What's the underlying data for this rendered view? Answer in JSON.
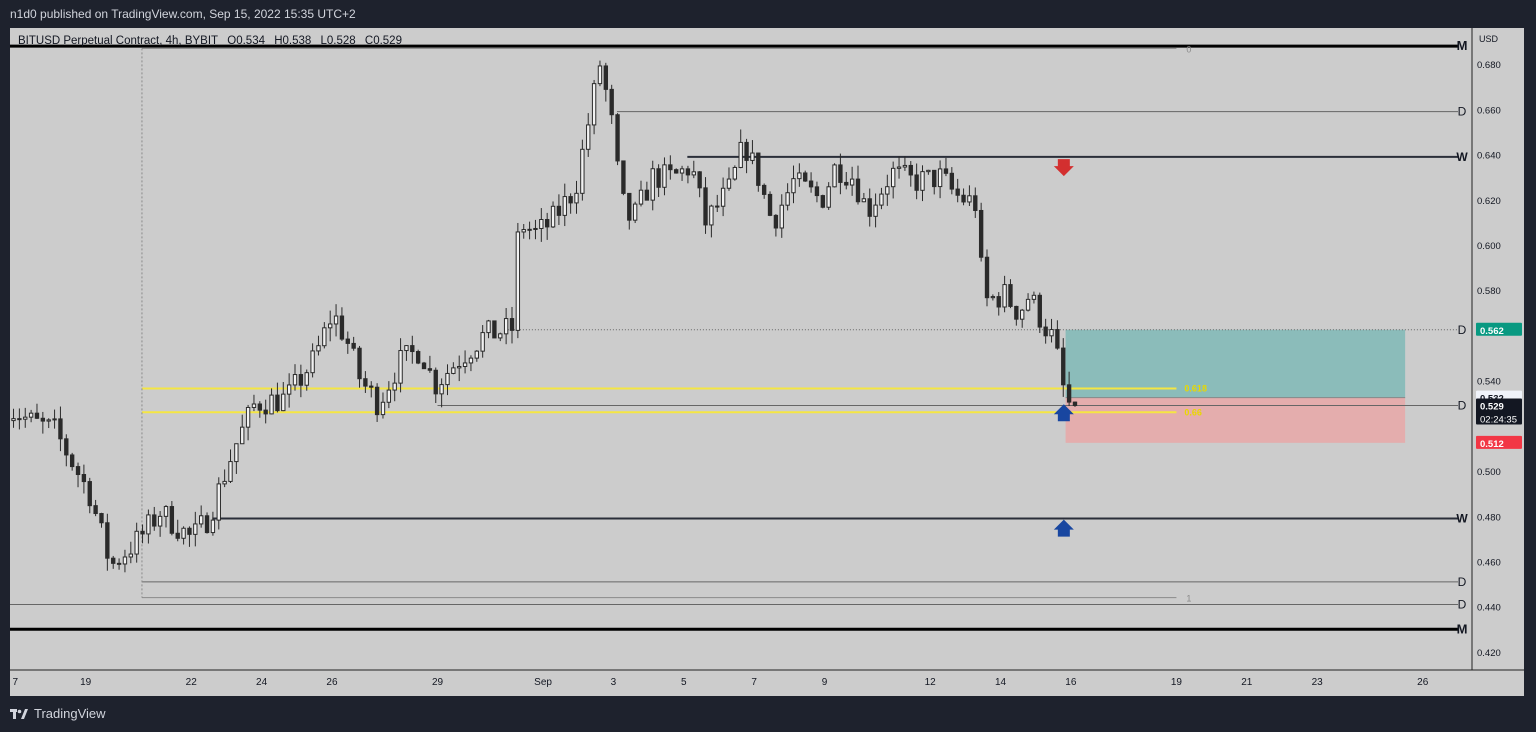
{
  "header": {
    "publisher_text": "n1d0 published on TradingView.com, Sep 15, 2022 15:35 UTC+2"
  },
  "legend": {
    "symbol": "BITUSD Perpetual Contract, 4h, BYBIT",
    "open": "O0.534",
    "high": "H0.538",
    "low": "L0.528",
    "close": "C0.529"
  },
  "price_axis": {
    "currency": "USD",
    "ticks": [
      "0.680",
      "0.660",
      "0.640",
      "0.620",
      "0.600",
      "0.580",
      "0.540",
      "0.500",
      "0.480",
      "0.460",
      "0.440",
      "0.420"
    ]
  },
  "time_axis": {
    "labels": [
      {
        "text": "7",
        "d": 0
      },
      {
        "text": "19",
        "d": 2
      },
      {
        "text": "22",
        "d": 5
      },
      {
        "text": "24",
        "d": 7
      },
      {
        "text": "26",
        "d": 9
      },
      {
        "text": "29",
        "d": 12
      },
      {
        "text": "Sep",
        "d": 15
      },
      {
        "text": "3",
        "d": 17
      },
      {
        "text": "5",
        "d": 19
      },
      {
        "text": "7",
        "d": 21
      },
      {
        "text": "9",
        "d": 23
      },
      {
        "text": "12",
        "d": 26
      },
      {
        "text": "14",
        "d": 28
      },
      {
        "text": "16",
        "d": 30
      },
      {
        "text": "19",
        "d": 33
      },
      {
        "text": "21",
        "d": 35
      },
      {
        "text": "23",
        "d": 37
      },
      {
        "text": "26",
        "d": 40
      }
    ]
  },
  "badges": {
    "target": {
      "text": "0.562",
      "color": "#089981"
    },
    "prev": {
      "text": "0.532",
      "color": "#f0f3fa"
    },
    "current": {
      "text": "0.529",
      "countdown": "02:24:35",
      "color": "#131722"
    },
    "stop": {
      "text": "0.512",
      "color": "#f23645"
    }
  },
  "levels": [
    {
      "label": "M",
      "price": 0.688,
      "kind": "monthly"
    },
    {
      "label": "D",
      "price": 0.659,
      "kind": "daily"
    },
    {
      "label": "W",
      "price": 0.639,
      "kind": "weekly"
    },
    {
      "label": "D",
      "price": 0.5625,
      "kind": "daily"
    },
    {
      "label": "D",
      "price": 0.529,
      "kind": "daily"
    },
    {
      "label": "W",
      "price": 0.479,
      "kind": "weekly"
    },
    {
      "label": "D",
      "price": 0.451,
      "kind": "daily"
    },
    {
      "label": "D",
      "price": 0.441,
      "kind": "daily"
    },
    {
      "label": "M",
      "price": 0.43,
      "kind": "monthly"
    }
  ],
  "fib": {
    "level0_label": "0",
    "level1_label": "1",
    "level618_label": "0.618",
    "level66_label": "0.66",
    "high": 0.687,
    "low": 0.444,
    "p618": 0.5365,
    "p66": 0.526,
    "color": "#f5e642"
  },
  "position": {
    "entry": 0.5325,
    "target": 0.5625,
    "stop": 0.5125,
    "profit_color": "#7fb8b6",
    "loss_color": "#e7a7a7"
  },
  "markers": [
    {
      "type": "down",
      "price": 0.634,
      "d": 29.8,
      "color": "#d32f2f"
    },
    {
      "type": "up",
      "price": 0.526,
      "d": 29.8,
      "color": "#1846a0"
    },
    {
      "type": "up",
      "price": 0.475,
      "d": 29.8,
      "color": "#1846a0"
    }
  ],
  "chart_data": {
    "type": "candlestick",
    "timeframe": "4h",
    "anchors": [
      {
        "d": -0.3,
        "p": 0.53
      },
      {
        "d": 0.5,
        "p": 0.522
      },
      {
        "d": 1.2,
        "p": 0.518
      },
      {
        "d": 2.2,
        "p": 0.49
      },
      {
        "d": 2.8,
        "p": 0.458
      },
      {
        "d": 3.6,
        "p": 0.47
      },
      {
        "d": 4.2,
        "p": 0.482
      },
      {
        "d": 5.1,
        "p": 0.47
      },
      {
        "d": 5.6,
        "p": 0.48
      },
      {
        "d": 6.3,
        "p": 0.51
      },
      {
        "d": 6.9,
        "p": 0.53
      },
      {
        "d": 7.8,
        "p": 0.532
      },
      {
        "d": 8.6,
        "p": 0.55
      },
      {
        "d": 9.1,
        "p": 0.57
      },
      {
        "d": 9.5,
        "p": 0.558
      },
      {
        "d": 9.9,
        "p": 0.54
      },
      {
        "d": 10.4,
        "p": 0.53
      },
      {
        "d": 11.0,
        "p": 0.548
      },
      {
        "d": 11.6,
        "p": 0.554
      },
      {
        "d": 12.0,
        "p": 0.538
      },
      {
        "d": 12.6,
        "p": 0.548
      },
      {
        "d": 13.4,
        "p": 0.56
      },
      {
        "d": 14.2,
        "p": 0.563
      },
      {
        "d": 14.4,
        "p": 0.61
      },
      {
        "d": 14.9,
        "p": 0.605
      },
      {
        "d": 15.3,
        "p": 0.61
      },
      {
        "d": 16.0,
        "p": 0.625
      },
      {
        "d": 16.7,
        "p": 0.68
      },
      {
        "d": 17.0,
        "p": 0.658
      },
      {
        "d": 17.3,
        "p": 0.62
      },
      {
        "d": 17.6,
        "p": 0.61
      },
      {
        "d": 18.2,
        "p": 0.63
      },
      {
        "d": 18.8,
        "p": 0.63
      },
      {
        "d": 19.3,
        "p": 0.635
      },
      {
        "d": 19.7,
        "p": 0.61
      },
      {
        "d": 20.4,
        "p": 0.625
      },
      {
        "d": 20.8,
        "p": 0.645
      },
      {
        "d": 21.2,
        "p": 0.63
      },
      {
        "d": 21.6,
        "p": 0.61
      },
      {
        "d": 22.2,
        "p": 0.628
      },
      {
        "d": 23.0,
        "p": 0.62
      },
      {
        "d": 23.4,
        "p": 0.635
      },
      {
        "d": 23.9,
        "p": 0.63
      },
      {
        "d": 24.3,
        "p": 0.615
      },
      {
        "d": 25.0,
        "p": 0.632
      },
      {
        "d": 25.6,
        "p": 0.628
      },
      {
        "d": 26.4,
        "p": 0.63
      },
      {
        "d": 26.8,
        "p": 0.622
      },
      {
        "d": 27.4,
        "p": 0.618
      },
      {
        "d": 27.6,
        "p": 0.575
      },
      {
        "d": 28.2,
        "p": 0.578
      },
      {
        "d": 28.6,
        "p": 0.57
      },
      {
        "d": 28.9,
        "p": 0.578
      },
      {
        "d": 29.3,
        "p": 0.565
      },
      {
        "d": 29.6,
        "p": 0.558
      },
      {
        "d": 29.9,
        "p": 0.534
      },
      {
        "d": 30.05,
        "p": 0.529
      }
    ],
    "y_range": [
      0.412,
      0.696
    ],
    "x_range_days": [
      -0.15,
      41.4
    ]
  }
}
